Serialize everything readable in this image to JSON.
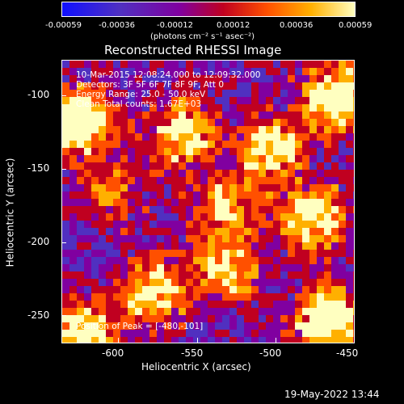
{
  "colorbar": {
    "ticks": [
      "-0.00059",
      "-0.00036",
      "-0.00012",
      "0.00012",
      "0.00036",
      "0.00059"
    ],
    "units": "(photons cm⁻² s⁻¹ asec⁻²)",
    "colors": [
      "#1010ff",
      "#5030c0",
      "#8000a0",
      "#c00020",
      "#ff5000",
      "#ffb000",
      "#ffffc0"
    ]
  },
  "title": "Reconstructed RHESSI Image",
  "annotations": {
    "time": "10-Mar-2015 12:08:24.000 to 12:09:32.000",
    "detectors": "Detectors: 3F 5F 6F 7F 8F 9F, Att 0",
    "energy": "Energy Range: 25.0 - 50.0 keV",
    "algorithm": "Clean     Total counts: 1.67E+03",
    "peak": "Position of Peak = [-480,-101]"
  },
  "axes": {
    "xlabel": "Heliocentric X (arcsec)",
    "ylabel": "Heliocentric Y (arcsec)",
    "xticks": [
      "-600",
      "-550",
      "-500",
      "-450"
    ],
    "yticks": [
      "-100",
      "-150",
      "-200",
      "-250"
    ]
  },
  "footer": "19-May-2022 13:44"
}
